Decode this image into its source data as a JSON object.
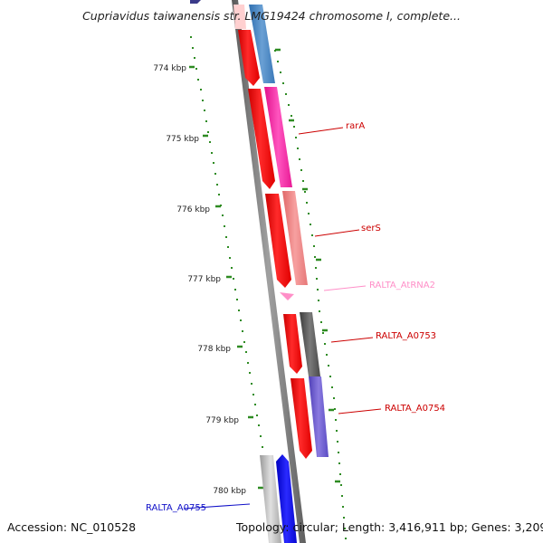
{
  "title": "Cupriavidus taiwanensis str. LMG19424 chromosome I, complete...",
  "footer": {
    "accession": "Accession: NC_010528",
    "topology": "Topology: circular; Length: 3,416,911 bp; Genes: 3,209"
  },
  "ruler": {
    "ticks": [
      "774 kbp",
      "775 kbp",
      "776 kbp",
      "777 kbp",
      "778 kbp",
      "779 kbp",
      "780 kbp"
    ],
    "color": "#2e8b22"
  },
  "gene_labels": [
    {
      "text": "rarA",
      "color": "#cc0000"
    },
    {
      "text": "serS",
      "color": "#cc0000"
    },
    {
      "text": "RALTA_AtRNA2",
      "color": "#ff8fc8"
    },
    {
      "text": "RALTA_A0753",
      "color": "#cc0000"
    },
    {
      "text": "RALTA_A0754",
      "color": "#cc0000"
    },
    {
      "text": "RALTA_A0755",
      "color": "#1010c8"
    }
  ],
  "colors": {
    "strand_forward": "#ff1010",
    "backbone": "#777777",
    "rarA": "#ff2aa6",
    "serS": "#f08080",
    "RALTA_A0753": "#5a5a5a",
    "RALTA_A0754": "#6a5acd",
    "RALTA_A0755": "#1010ff",
    "top_gene": "#4a86c0"
  }
}
